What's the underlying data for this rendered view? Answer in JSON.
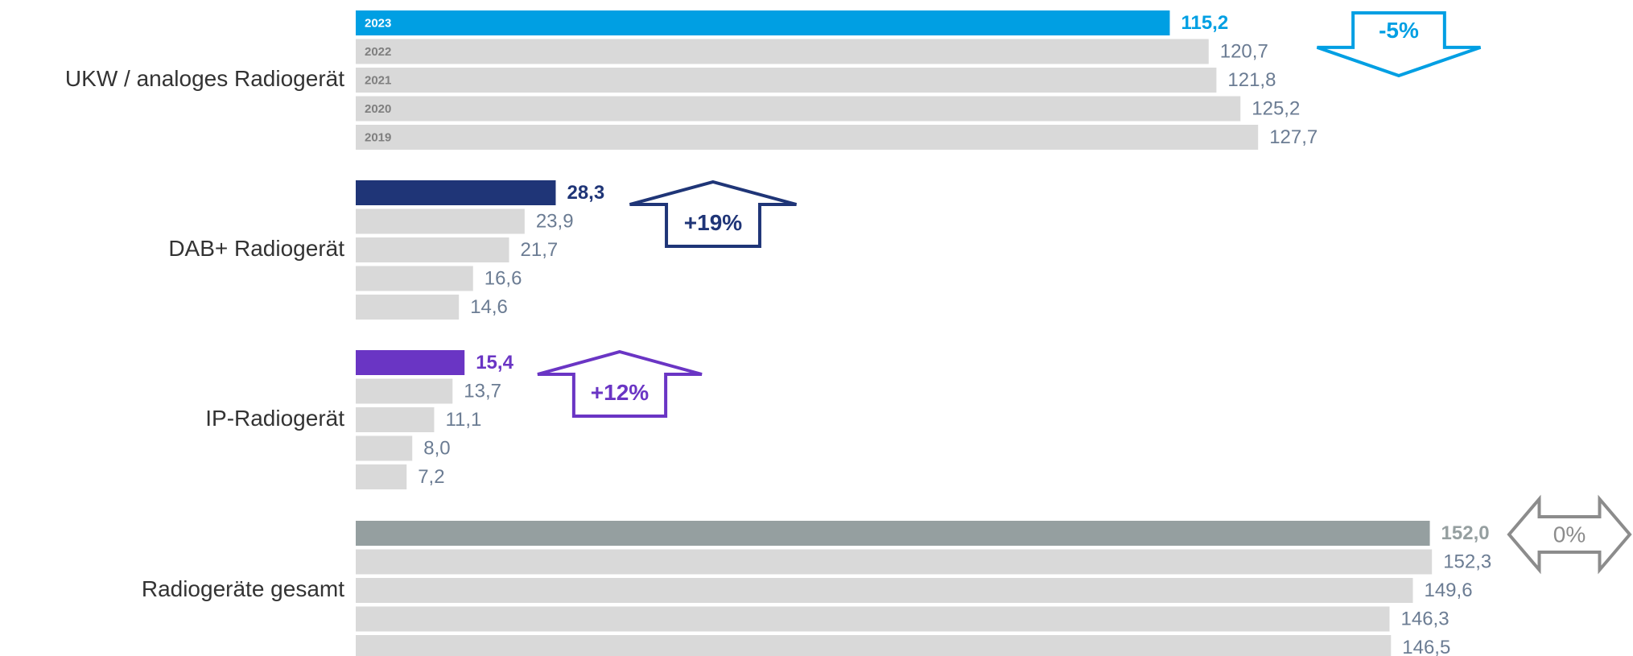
{
  "chart_data": {
    "type": "grouped-hbar",
    "categories": [
      "UKW / analoges Radiogerät",
      "DAB+ Radiogerät",
      "IP-Radiogerät",
      "Radiogeräte gesamt"
    ],
    "series": [
      {
        "name": "2023",
        "colors": [
          "#009fe3",
          "#1f3577",
          "#6a35c4",
          "#959fa0"
        ],
        "values": [
          115.2,
          28.3,
          15.4,
          152.0
        ],
        "value_labels": [
          "115,2",
          "28,3",
          "15,4",
          "152,0"
        ]
      },
      {
        "name": "2022",
        "color": "#d9d9d9",
        "label_color": "#6b7c93",
        "values": [
          120.7,
          23.9,
          13.7,
          152.3
        ],
        "value_labels": [
          "120,7",
          "23,9",
          "13,7",
          "152,3"
        ]
      },
      {
        "name": "2021",
        "color": "#d9d9d9",
        "label_color": "#6b7c93",
        "values": [
          121.8,
          21.7,
          11.1,
          149.6
        ],
        "value_labels": [
          "121,8",
          "21,7",
          "11,1",
          "149,6"
        ]
      },
      {
        "name": "2020",
        "color": "#d9d9d9",
        "label_color": "#6b7c93",
        "values": [
          125.2,
          16.6,
          8.0,
          146.3
        ],
        "value_labels": [
          "125,2",
          "16,6",
          "8,0",
          "146,3"
        ]
      },
      {
        "name": "2019",
        "color": "#d9d9d9",
        "label_color": "#6b7c93",
        "values": [
          127.7,
          14.6,
          7.2,
          146.5
        ],
        "value_labels": [
          "127,7",
          "14,6",
          "7,2",
          "146,5"
        ]
      }
    ],
    "changes": {
      "values": [
        -5,
        19,
        12,
        0
      ],
      "value_labels": [
        "-5%",
        "+19%",
        "+12%",
        "0%"
      ],
      "colors": [
        "#009fe3",
        "#1f3577",
        "#6a35c4",
        "#8c8c8c"
      ]
    }
  }
}
